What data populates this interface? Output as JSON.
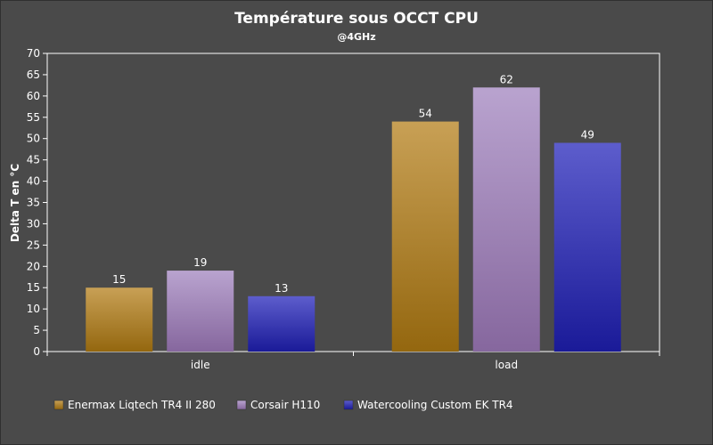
{
  "chart_data": {
    "type": "bar",
    "title": "Température sous OCCT CPU",
    "subtitle": "@4GHz",
    "xlabel": "",
    "ylabel": "Delta T en °C",
    "ylim": [
      0,
      70
    ],
    "yticks": [
      0,
      5,
      10,
      15,
      20,
      25,
      30,
      35,
      40,
      45,
      50,
      55,
      60,
      65,
      70
    ],
    "categories": [
      "idle",
      "load"
    ],
    "series": [
      {
        "name": "Enermax Liqtech TR4 II 280",
        "values": [
          15,
          54
        ],
        "color": "#c8a055",
        "color_dark": "#94670f"
      },
      {
        "name": "Corsair H110",
        "values": [
          19,
          62
        ],
        "color": "#b9a3cf",
        "color_dark": "#86679e"
      },
      {
        "name": "Watercooling Custom EK TR4",
        "values": [
          13,
          49
        ],
        "color": "#5d5dcc",
        "color_dark": "#1a1a98"
      }
    ],
    "grid": false,
    "legend_position": "bottom-left",
    "data_labels": true
  }
}
